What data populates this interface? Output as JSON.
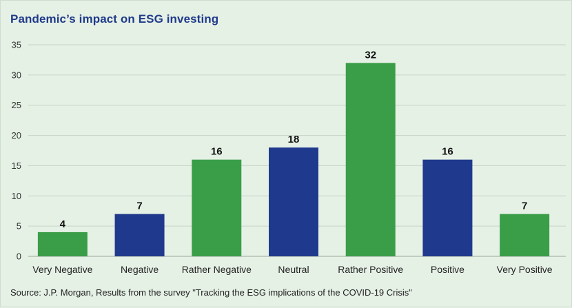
{
  "chart_data": {
    "type": "bar",
    "title": "Pandemic’s impact on ESG investing",
    "categories": [
      "Very Negative",
      "Negative",
      "Rather Negative",
      "Neutral",
      "Rather Positive",
      "Positive",
      "Very Positive"
    ],
    "values": [
      4,
      7,
      16,
      18,
      32,
      16,
      7
    ],
    "bar_colors": [
      "#3a9e48",
      "#1f3a8c",
      "#3a9e48",
      "#1f3a8c",
      "#3a9e48",
      "#1f3a8c",
      "#3a9e48"
    ],
    "yticks": [
      0,
      5,
      10,
      15,
      20,
      25,
      30,
      35
    ],
    "ylim": [
      0,
      35
    ],
    "grid": true,
    "legend": "none",
    "source": "Source: J.P. Morgan, Results from the survey \"Tracking the ESG implications of the COVID-19 Crisis\""
  }
}
